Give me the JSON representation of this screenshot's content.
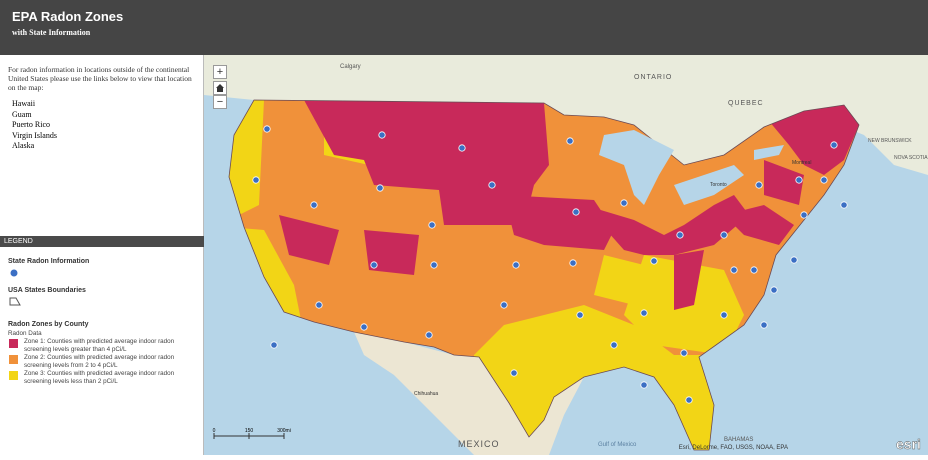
{
  "header": {
    "title": "EPA Radon Zones",
    "subtitle": "with State Information"
  },
  "sidebar": {
    "intro": "For radon information in locations outside of the continental United States please use the links below to view that location on the map:",
    "links": [
      "Hawaii",
      "Guam",
      "Puerto Rico",
      "Virgin Islands",
      "Alaska"
    ]
  },
  "legend": {
    "heading": "LEGEND",
    "state_info": "State Radon Information",
    "boundaries": "USA States Boundaries",
    "zones_title": "Radon Zones by County",
    "zones_field": "Radon Data",
    "classes": [
      {
        "label": "Zone 1: Counties with predicted average indoor radon screening levels greater than 4 pCi/L",
        "color": "#c8295a"
      },
      {
        "label": "Zone 2: Counties with predicted average indoor radon screening levels from 2 to 4 pCi/L",
        "color": "#f0913a"
      },
      {
        "label": "Zone 3: Counties with predicted average indoor radon screening levels less than 2 pCi/L",
        "color": "#f2d516"
      }
    ]
  },
  "map": {
    "zoom_in": "+",
    "zoom_out": "−",
    "labels": [
      "Calgary",
      "ONTARIO",
      "QUEBEC",
      "Montreal",
      "Toronto",
      "NEW BRUNSWICK",
      "NOVA SCOTIA",
      "Chihuahua",
      "MEXICO",
      "Gulf of Mexico",
      "BAHAMAS"
    ],
    "scale": [
      "0",
      "150",
      "300mi"
    ],
    "attribution": "Esri, DeLorme, FAO, USGS, NOAA, EPA",
    "logo": "esri"
  }
}
